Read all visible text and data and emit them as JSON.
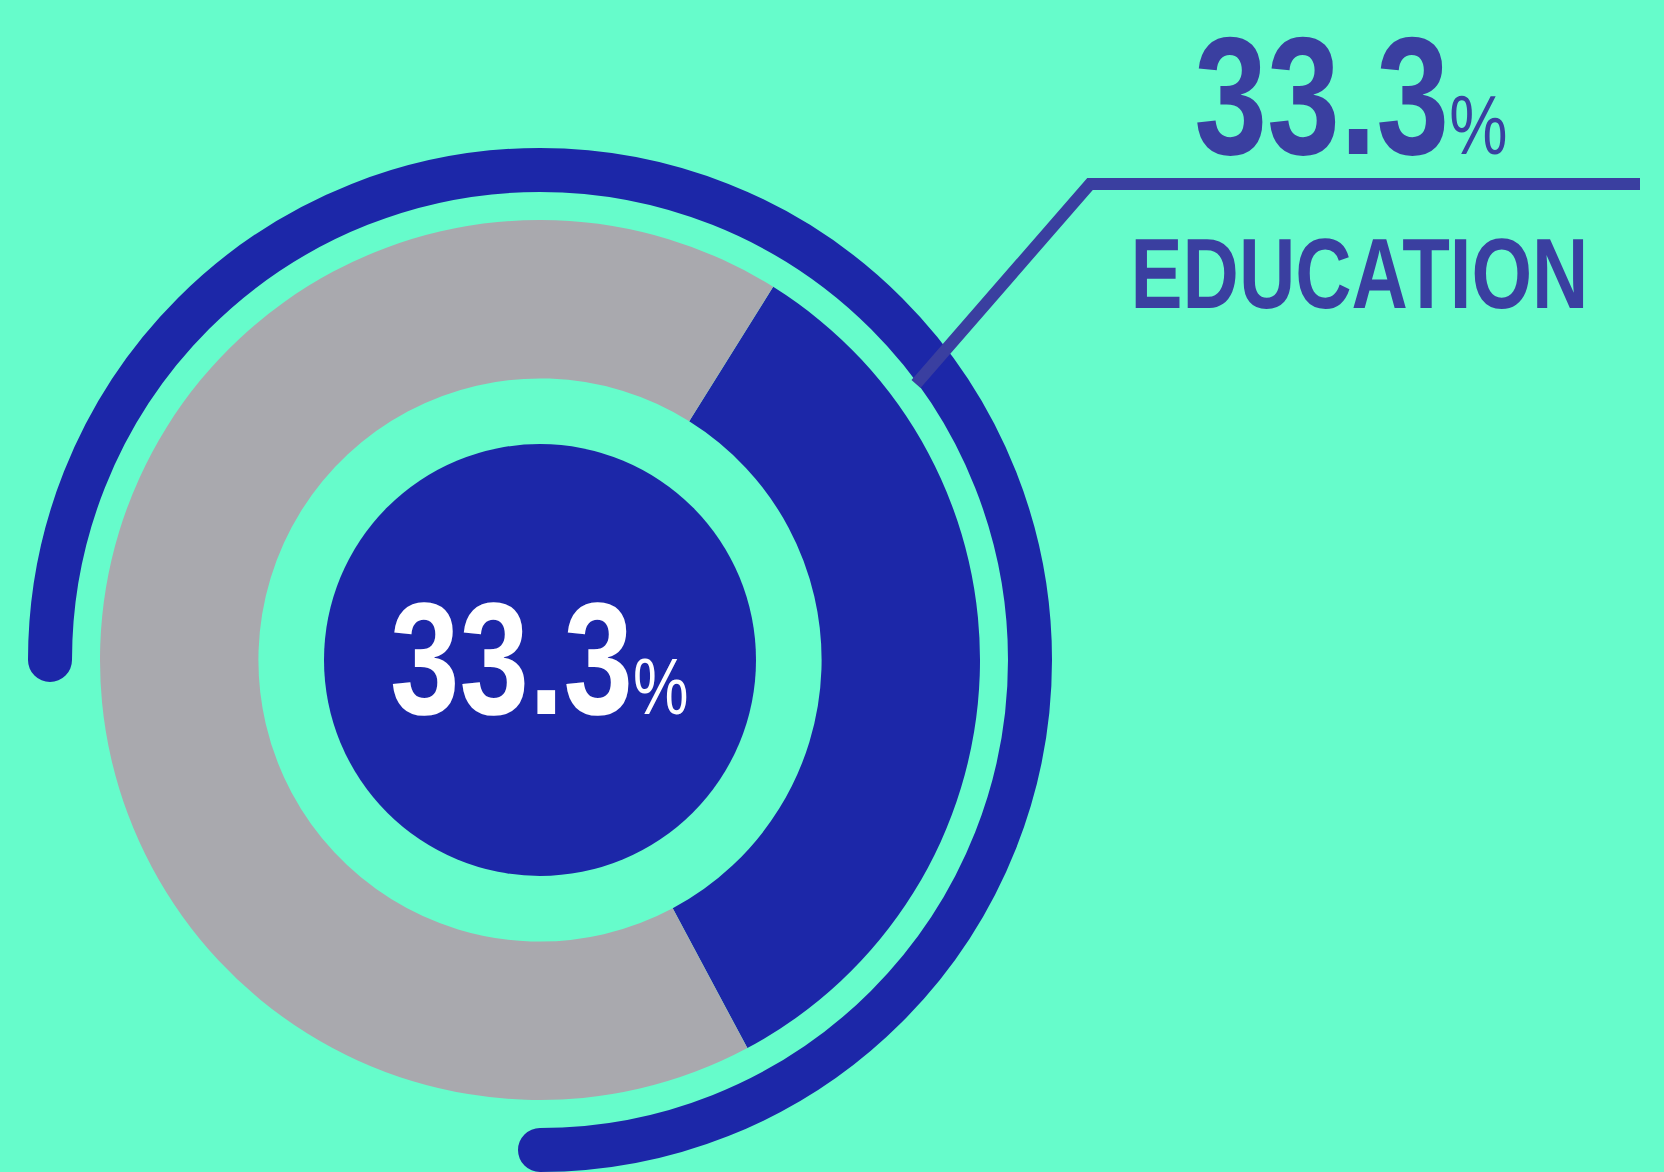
{
  "chart_data": {
    "type": "donut",
    "categories": [
      "EDUCATION",
      null
    ],
    "values": [
      33.3,
      66.7
    ],
    "colors": [
      "#1c27a8",
      "#a9a9ae"
    ],
    "value_labels": [
      "33.3%",
      null
    ],
    "annotations": [
      "33.3%"
    ],
    "legend": false
  }
}
